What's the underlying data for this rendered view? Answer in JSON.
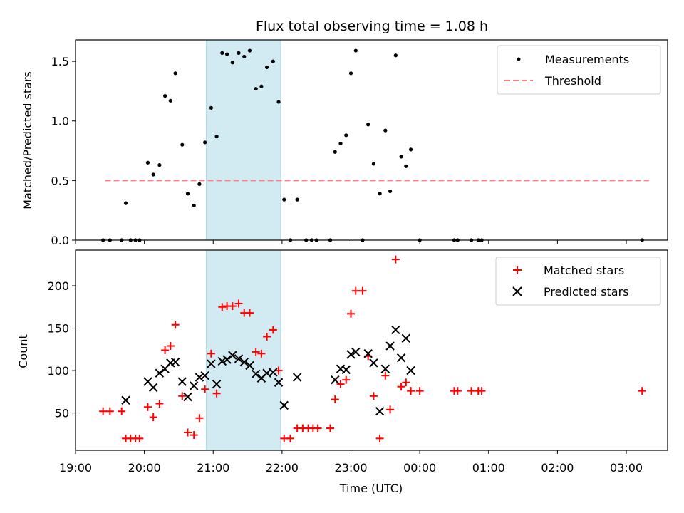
{
  "chart_data": {
    "type": "scatter",
    "title": "Flux total observing time = 1.08 h",
    "xlabel": "Time (UTC)",
    "x_ticks": [
      "19:00",
      "20:00",
      "21:00",
      "22:00",
      "23:00",
      "00:00",
      "01:00",
      "02:00",
      "03:00"
    ],
    "x_range_hours": [
      19.0,
      27.6
    ],
    "highlight_span_hours": [
      20.9,
      21.98
    ],
    "highlight_color": "#add8e6",
    "top_panel": {
      "ylabel": "Matched/Predicted stars",
      "ylim": [
        0,
        1.68
      ],
      "y_ticks": [
        "0.0",
        "0.5",
        "1.0",
        "1.5"
      ],
      "legend": {
        "position": "upper right",
        "measurements": "Measurements",
        "threshold": "Threshold"
      },
      "threshold": {
        "value": 0.5,
        "x_range_hours": [
          19.43,
          27.33
        ],
        "color": "#ff7f7f"
      },
      "measurements_color": "#000000",
      "measurements": [
        {
          "x": 19.4,
          "y": 0.0
        },
        {
          "x": 19.5,
          "y": 0.0
        },
        {
          "x": 19.67,
          "y": 0.0
        },
        {
          "x": 19.73,
          "y": 0.31
        },
        {
          "x": 19.8,
          "y": 0.0
        },
        {
          "x": 19.87,
          "y": 0.0
        },
        {
          "x": 19.93,
          "y": 0.0
        },
        {
          "x": 20.05,
          "y": 0.65
        },
        {
          "x": 20.13,
          "y": 0.55
        },
        {
          "x": 20.22,
          "y": 0.63
        },
        {
          "x": 20.3,
          "y": 1.21
        },
        {
          "x": 20.38,
          "y": 1.17
        },
        {
          "x": 20.45,
          "y": 1.4
        },
        {
          "x": 20.55,
          "y": 0.8
        },
        {
          "x": 20.63,
          "y": 0.39
        },
        {
          "x": 20.72,
          "y": 0.29
        },
        {
          "x": 20.8,
          "y": 0.47
        },
        {
          "x": 20.88,
          "y": 0.82
        },
        {
          "x": 20.97,
          "y": 1.11
        },
        {
          "x": 21.05,
          "y": 0.87
        },
        {
          "x": 21.13,
          "y": 1.57
        },
        {
          "x": 21.2,
          "y": 1.56
        },
        {
          "x": 21.28,
          "y": 1.49
        },
        {
          "x": 21.37,
          "y": 1.57
        },
        {
          "x": 21.45,
          "y": 1.54
        },
        {
          "x": 21.53,
          "y": 1.59
        },
        {
          "x": 21.62,
          "y": 1.27
        },
        {
          "x": 21.7,
          "y": 1.29
        },
        {
          "x": 21.78,
          "y": 1.45
        },
        {
          "x": 21.87,
          "y": 1.5
        },
        {
          "x": 21.95,
          "y": 1.16
        },
        {
          "x": 22.03,
          "y": 0.34
        },
        {
          "x": 22.12,
          "y": 0.0
        },
        {
          "x": 22.22,
          "y": 0.34
        },
        {
          "x": 22.35,
          "y": 0.0
        },
        {
          "x": 22.43,
          "y": 0.0
        },
        {
          "x": 22.5,
          "y": 0.0
        },
        {
          "x": 22.7,
          "y": 0.0
        },
        {
          "x": 22.77,
          "y": 0.74
        },
        {
          "x": 22.85,
          "y": 0.81
        },
        {
          "x": 22.93,
          "y": 0.88
        },
        {
          "x": 23.0,
          "y": 1.4
        },
        {
          "x": 23.07,
          "y": 1.59
        },
        {
          "x": 23.17,
          "y": 0.0
        },
        {
          "x": 23.25,
          "y": 0.97
        },
        {
          "x": 23.33,
          "y": 0.64
        },
        {
          "x": 23.42,
          "y": 0.39
        },
        {
          "x": 23.5,
          "y": 0.92
        },
        {
          "x": 23.57,
          "y": 0.41
        },
        {
          "x": 23.65,
          "y": 1.55
        },
        {
          "x": 23.73,
          "y": 0.7
        },
        {
          "x": 23.8,
          "y": 0.62
        },
        {
          "x": 23.87,
          "y": 0.76
        },
        {
          "x": 24.0,
          "y": 0.0
        },
        {
          "x": 24.5,
          "y": 0.0
        },
        {
          "x": 24.55,
          "y": 0.0
        },
        {
          "x": 24.75,
          "y": 0.0
        },
        {
          "x": 24.85,
          "y": 0.0
        },
        {
          "x": 24.9,
          "y": 0.0
        },
        {
          "x": 27.23,
          "y": 0.0
        }
      ]
    },
    "bottom_panel": {
      "ylabel": "Count",
      "ylim": [
        6,
        242
      ],
      "y_ticks": [
        "50",
        "100",
        "150",
        "200"
      ],
      "legend": {
        "position": "upper right",
        "matched": "Matched stars",
        "predicted": "Predicted stars"
      },
      "matched_color": "#ff0000",
      "predicted_color": "#000000",
      "matched": [
        {
          "x": 19.4,
          "y": 52
        },
        {
          "x": 19.5,
          "y": 52
        },
        {
          "x": 19.67,
          "y": 52
        },
        {
          "x": 19.73,
          "y": 20
        },
        {
          "x": 19.8,
          "y": 20
        },
        {
          "x": 19.87,
          "y": 20
        },
        {
          "x": 19.93,
          "y": 20
        },
        {
          "x": 20.05,
          "y": 57
        },
        {
          "x": 20.13,
          "y": 45
        },
        {
          "x": 20.22,
          "y": 61
        },
        {
          "x": 20.3,
          "y": 124
        },
        {
          "x": 20.38,
          "y": 129
        },
        {
          "x": 20.45,
          "y": 154
        },
        {
          "x": 20.55,
          "y": 70
        },
        {
          "x": 20.63,
          "y": 27
        },
        {
          "x": 20.72,
          "y": 24
        },
        {
          "x": 20.8,
          "y": 44
        },
        {
          "x": 20.88,
          "y": 78
        },
        {
          "x": 20.97,
          "y": 120
        },
        {
          "x": 21.05,
          "y": 73
        },
        {
          "x": 21.13,
          "y": 175
        },
        {
          "x": 21.2,
          "y": 176
        },
        {
          "x": 21.28,
          "y": 176
        },
        {
          "x": 21.37,
          "y": 179
        },
        {
          "x": 21.45,
          "y": 168
        },
        {
          "x": 21.53,
          "y": 168
        },
        {
          "x": 21.62,
          "y": 122
        },
        {
          "x": 21.7,
          "y": 120
        },
        {
          "x": 21.78,
          "y": 140
        },
        {
          "x": 21.87,
          "y": 148
        },
        {
          "x": 21.95,
          "y": 100
        },
        {
          "x": 22.03,
          "y": 20
        },
        {
          "x": 22.12,
          "y": 20
        },
        {
          "x": 22.22,
          "y": 32
        },
        {
          "x": 22.3,
          "y": 32
        },
        {
          "x": 22.38,
          "y": 32
        },
        {
          "x": 22.45,
          "y": 32
        },
        {
          "x": 22.52,
          "y": 32
        },
        {
          "x": 22.7,
          "y": 32
        },
        {
          "x": 22.77,
          "y": 66
        },
        {
          "x": 22.85,
          "y": 84
        },
        {
          "x": 22.93,
          "y": 89
        },
        {
          "x": 23.0,
          "y": 167
        },
        {
          "x": 23.07,
          "y": 194
        },
        {
          "x": 23.17,
          "y": 194
        },
        {
          "x": 23.25,
          "y": 117
        },
        {
          "x": 23.33,
          "y": 70
        },
        {
          "x": 23.42,
          "y": 20
        },
        {
          "x": 23.5,
          "y": 94
        },
        {
          "x": 23.57,
          "y": 54
        },
        {
          "x": 23.65,
          "y": 231
        },
        {
          "x": 23.73,
          "y": 81
        },
        {
          "x": 23.8,
          "y": 86
        },
        {
          "x": 23.87,
          "y": 76
        },
        {
          "x": 24.0,
          "y": 76
        },
        {
          "x": 24.5,
          "y": 76
        },
        {
          "x": 24.55,
          "y": 76
        },
        {
          "x": 24.75,
          "y": 76
        },
        {
          "x": 24.85,
          "y": 76
        },
        {
          "x": 24.9,
          "y": 76
        },
        {
          "x": 27.23,
          "y": 76
        }
      ],
      "predicted": [
        {
          "x": 19.73,
          "y": 65
        },
        {
          "x": 20.05,
          "y": 87
        },
        {
          "x": 20.13,
          "y": 80
        },
        {
          "x": 20.22,
          "y": 97
        },
        {
          "x": 20.3,
          "y": 102
        },
        {
          "x": 20.38,
          "y": 109
        },
        {
          "x": 20.45,
          "y": 110
        },
        {
          "x": 20.55,
          "y": 87
        },
        {
          "x": 20.63,
          "y": 69
        },
        {
          "x": 20.72,
          "y": 82
        },
        {
          "x": 20.8,
          "y": 92
        },
        {
          "x": 20.88,
          "y": 94
        },
        {
          "x": 20.97,
          "y": 108
        },
        {
          "x": 21.05,
          "y": 84
        },
        {
          "x": 21.13,
          "y": 111
        },
        {
          "x": 21.2,
          "y": 113
        },
        {
          "x": 21.28,
          "y": 118
        },
        {
          "x": 21.37,
          "y": 114
        },
        {
          "x": 21.45,
          "y": 110
        },
        {
          "x": 21.53,
          "y": 106
        },
        {
          "x": 21.62,
          "y": 96
        },
        {
          "x": 21.7,
          "y": 91
        },
        {
          "x": 21.78,
          "y": 97
        },
        {
          "x": 21.87,
          "y": 98
        },
        {
          "x": 21.95,
          "y": 86
        },
        {
          "x": 22.03,
          "y": 59
        },
        {
          "x": 22.22,
          "y": 92
        },
        {
          "x": 22.77,
          "y": 89
        },
        {
          "x": 22.85,
          "y": 102
        },
        {
          "x": 22.93,
          "y": 101
        },
        {
          "x": 23.0,
          "y": 119
        },
        {
          "x": 23.07,
          "y": 122
        },
        {
          "x": 23.25,
          "y": 120
        },
        {
          "x": 23.33,
          "y": 109
        },
        {
          "x": 23.42,
          "y": 52
        },
        {
          "x": 23.5,
          "y": 102
        },
        {
          "x": 23.57,
          "y": 129
        },
        {
          "x": 23.65,
          "y": 148
        },
        {
          "x": 23.73,
          "y": 115
        },
        {
          "x": 23.8,
          "y": 138
        },
        {
          "x": 23.87,
          "y": 100
        }
      ]
    }
  }
}
